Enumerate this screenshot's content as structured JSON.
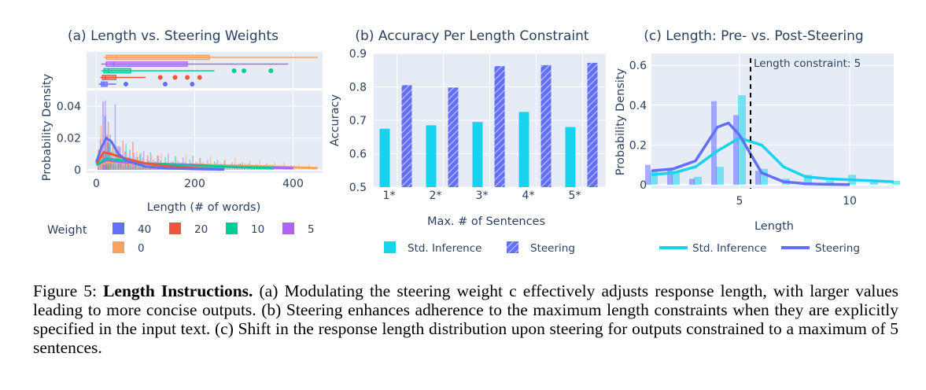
{
  "chart_data": [
    {
      "type": "histogram",
      "title": "(a) Length vs. Steering Weights",
      "xlabel": "Length (# of words)",
      "ylabel": "Probability Density",
      "xlim": [
        -20,
        460
      ],
      "ylim": [
        -0.002,
        0.05
      ],
      "xticks": [
        0,
        200,
        400
      ],
      "yticks": [
        0,
        0.02,
        0.04
      ],
      "ytick_labels": [
        "0",
        "0.02",
        "0.04"
      ],
      "legend": {
        "title": "Weight",
        "entries": [
          {
            "name": "40",
            "color": "#636efa"
          },
          {
            "name": "20",
            "color": "#ef553b"
          },
          {
            "name": "10",
            "color": "#00cc96"
          },
          {
            "name": "5",
            "color": "#ab63fa"
          },
          {
            "name": "0",
            "color": "#ffa15a"
          }
        ]
      },
      "box_rows": [
        {
          "weight": "0",
          "color": "#ffa15a",
          "min": 15,
          "q1": 20,
          "median": 40,
          "q3": 230,
          "max": 450
        },
        {
          "weight": "5",
          "color": "#ab63fa",
          "min": 10,
          "q1": 20,
          "median": 35,
          "q3": 185,
          "max": 390
        },
        {
          "weight": "10",
          "color": "#00cc96",
          "min": 10,
          "q1": 15,
          "median": 25,
          "q3": 70,
          "max": 240,
          "outliers": [
            280,
            300,
            355
          ]
        },
        {
          "weight": "20",
          "color": "#ef553b",
          "min": 8,
          "q1": 12,
          "median": 18,
          "q3": 40,
          "max": 100,
          "outliers": [
            130,
            160,
            185,
            210
          ]
        },
        {
          "weight": "40",
          "color": "#636efa",
          "min": 5,
          "q1": 10,
          "median": 15,
          "q3": 22,
          "max": 40,
          "outliers": [
            60,
            140,
            195
          ]
        }
      ],
      "series": [
        {
          "name": "40",
          "color": "#636efa",
          "x": [
            0,
            10,
            20,
            30,
            45,
            60,
            80,
            100,
            140,
            200,
            260
          ],
          "y": [
            0.005,
            0.014,
            0.02,
            0.018,
            0.01,
            0.006,
            0.004,
            0.002,
            0.001,
            0.0005,
            0.0002
          ]
        },
        {
          "name": "20",
          "color": "#ef553b",
          "x": [
            0,
            15,
            30,
            60,
            100,
            150,
            200,
            260
          ],
          "y": [
            0.004,
            0.011,
            0.01,
            0.007,
            0.004,
            0.002,
            0.001,
            0.0004
          ]
        },
        {
          "name": "10",
          "color": "#00cc96",
          "x": [
            0,
            20,
            50,
            100,
            160,
            220,
            300,
            360
          ],
          "y": [
            0.003,
            0.007,
            0.006,
            0.004,
            0.003,
            0.0025,
            0.0015,
            0.001
          ]
        },
        {
          "name": "5",
          "color": "#ab63fa",
          "x": [
            0,
            20,
            50,
            100,
            150,
            200,
            260,
            320,
            400
          ],
          "y": [
            0.003,
            0.006,
            0.005,
            0.004,
            0.0035,
            0.003,
            0.002,
            0.0015,
            0.001
          ]
        },
        {
          "name": "0",
          "color": "#ffa15a",
          "x": [
            0,
            30,
            80,
            150,
            220,
            300,
            380,
            450
          ],
          "y": [
            0.003,
            0.005,
            0.004,
            0.0035,
            0.003,
            0.0025,
            0.0018,
            0.001
          ]
        }
      ]
    },
    {
      "type": "bar",
      "title": "(b) Accuracy Per Length Constraint",
      "xlabel": "Max. # of Sentences",
      "ylabel": "Accuracy",
      "ylim": [
        0.5,
        0.9
      ],
      "yticks": [
        0.5,
        0.6,
        0.7,
        0.8,
        0.9
      ],
      "ytick_labels": [
        "0.5",
        "0.6",
        "0.7",
        "0.8",
        "0.9"
      ],
      "categories": [
        "1*",
        "2*",
        "3*",
        "4*",
        "5*"
      ],
      "series": [
        {
          "name": "Std. Inference",
          "color": "#17d3f0",
          "values": [
            0.675,
            0.685,
            0.695,
            0.725,
            0.68
          ]
        },
        {
          "name": "Steering",
          "color": "#636efa",
          "pattern": "hatch",
          "values": [
            0.805,
            0.798,
            0.862,
            0.865,
            0.872
          ]
        }
      ]
    },
    {
      "type": "histogram",
      "title": "(c) Length: Pre- vs. Post-Steering",
      "xlabel": "Length",
      "ylabel": "Probability Density",
      "xlim": [
        1,
        12
      ],
      "ylim": [
        -0.02,
        0.66
      ],
      "xticks": [
        5,
        10
      ],
      "yticks": [
        0,
        0.2,
        0.4,
        0.6
      ],
      "ytick_labels": [
        "0",
        "0.2",
        "0.4",
        "0.6"
      ],
      "annotation": {
        "text": "Length constraint: 5",
        "x": 5.5
      },
      "bars": [
        {
          "name": "Std. Inference",
          "color": "#17d3f0",
          "x": [
            1,
            2,
            3,
            4,
            5,
            6,
            7,
            8,
            9,
            10,
            11,
            12
          ],
          "y": [
            0.07,
            0.06,
            0.04,
            0.09,
            0.45,
            0.08,
            0.03,
            0.05,
            0.02,
            0.05,
            0.02,
            0.02
          ]
        },
        {
          "name": "Steering",
          "color": "#636efa",
          "x": [
            1,
            2,
            3,
            4,
            5,
            6
          ],
          "y": [
            0.1,
            0.08,
            0.03,
            0.42,
            0.35,
            0.07
          ]
        }
      ],
      "series": [
        {
          "name": "Std. Inference",
          "color": "#17d3f0",
          "x": [
            1,
            2,
            3,
            4,
            5,
            6,
            7,
            8,
            9,
            10,
            11,
            12
          ],
          "y": [
            0.05,
            0.06,
            0.09,
            0.17,
            0.235,
            0.2,
            0.09,
            0.04,
            0.03,
            0.025,
            0.02,
            0.015
          ]
        },
        {
          "name": "Steering",
          "color": "#636efa",
          "x": [
            1,
            2,
            3,
            4,
            4.5,
            5,
            6,
            7,
            8,
            9,
            10
          ],
          "y": [
            0.07,
            0.08,
            0.12,
            0.29,
            0.31,
            0.25,
            0.06,
            0.015,
            0.005,
            0.002,
            0.001
          ]
        }
      ]
    }
  ],
  "caption": {
    "prefix": "Figure 5: ",
    "bold": "Length Instructions.",
    "body": " (a) Modulating the steering weight c effectively adjusts response length, with larger values leading to more concise outputs. (b) Steering enhances adherence to the maximum length constraints when they are explicitly specified in the input text. (c) Shift in the response length distribution upon steering for outputs constrained to a maximum of 5 sentences."
  }
}
